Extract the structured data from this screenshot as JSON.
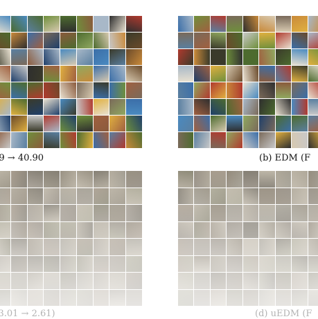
{
  "figure": {
    "panel_a": {
      "caption": ".99 → 40.90"
    },
    "panel_b": {
      "caption": "(b) EDM (F"
    },
    "panel_c": {
      "caption": "x 3.01 → 2.61)"
    },
    "panel_d": {
      "caption": "(d) uEDM (F"
    }
  },
  "palette": {
    "bright": [
      "#3b6ea8",
      "#c98a3a",
      "#6f8f3c",
      "#2e2e2e",
      "#d7c9b0",
      "#8a5a3c",
      "#a8b8c8",
      "#4d6b2f",
      "#b03a2e",
      "#e0b040",
      "#5a7fa0",
      "#7a6a5a",
      "#1f3f6a",
      "#c8c8c8",
      "#6a4a2a",
      "#90a860",
      "#3a3a2a",
      "#e8e0d0",
      "#4a8ac0",
      "#a06040"
    ],
    "muted": [
      "#9a9588",
      "#8a8070",
      "#a8a090",
      "#7a7468",
      "#b0a898",
      "#8c8478",
      "#9c9488",
      "#a4a08c",
      "#84806c",
      "#b8b0a0",
      "#908878",
      "#a09484"
    ]
  }
}
